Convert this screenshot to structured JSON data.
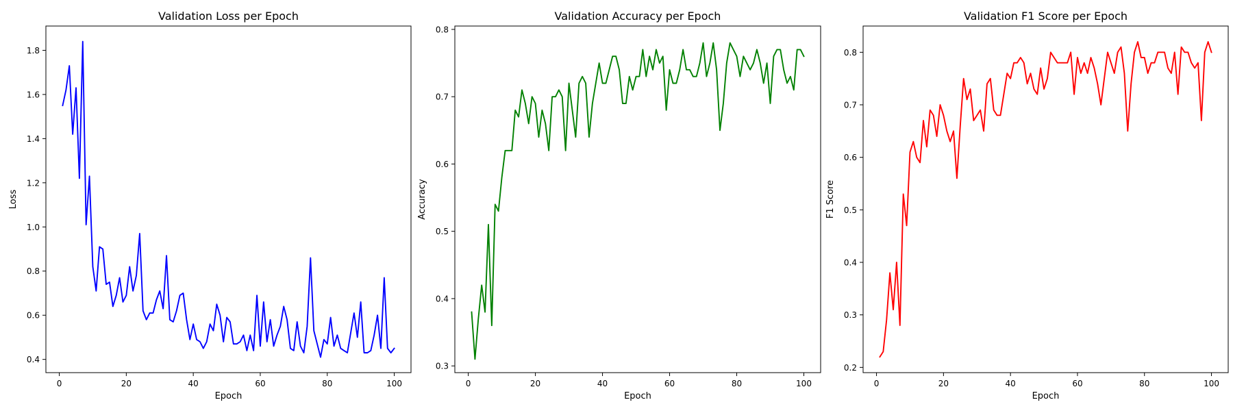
{
  "chart_data": [
    {
      "type": "line",
      "title": "Validation Loss per Epoch",
      "xlabel": "Epoch",
      "ylabel": "Loss",
      "xlim": [
        -4,
        105
      ],
      "ylim": [
        0.34,
        1.91
      ],
      "xticks": [
        0,
        20,
        40,
        60,
        80,
        100
      ],
      "yticks": [
        0.4,
        0.6,
        0.8,
        1.0,
        1.2,
        1.4,
        1.6,
        1.8
      ],
      "ytick_labels": [
        "0.4",
        "0.6",
        "0.8",
        "1.0",
        "1.2",
        "1.4",
        "1.6",
        "1.8"
      ],
      "grid": false,
      "color": "#0000ff",
      "series": [
        {
          "x": [
            1,
            2,
            3,
            4,
            5,
            6,
            7,
            8,
            9,
            10,
            11,
            12,
            13,
            14,
            15,
            16,
            17,
            18,
            19,
            20,
            21,
            22,
            23,
            24,
            25,
            26,
            27,
            28,
            29,
            30,
            31,
            32,
            33,
            34,
            35,
            36,
            37,
            38,
            39,
            40,
            41,
            42,
            43,
            44,
            45,
            46,
            47,
            48,
            49,
            50,
            51,
            52,
            53,
            54,
            55,
            56,
            57,
            58,
            59,
            60,
            61,
            62,
            63,
            64,
            65,
            66,
            67,
            68,
            69,
            70,
            71,
            72,
            73,
            74,
            75,
            76,
            77,
            78,
            79,
            80,
            81,
            82,
            83,
            84,
            85,
            86,
            87,
            88,
            89,
            90,
            91,
            92,
            93,
            94,
            95,
            96,
            97,
            98,
            99,
            100
          ],
          "values": [
            1.55,
            1.62,
            1.73,
            1.42,
            1.63,
            1.22,
            1.84,
            1.01,
            1.23,
            0.82,
            0.71,
            0.91,
            0.9,
            0.74,
            0.75,
            0.64,
            0.69,
            0.77,
            0.66,
            0.69,
            0.82,
            0.71,
            0.78,
            0.97,
            0.62,
            0.58,
            0.61,
            0.61,
            0.67,
            0.71,
            0.63,
            0.87,
            0.58,
            0.57,
            0.62,
            0.69,
            0.7,
            0.58,
            0.49,
            0.56,
            0.49,
            0.48,
            0.45,
            0.48,
            0.56,
            0.53,
            0.65,
            0.6,
            0.48,
            0.59,
            0.57,
            0.47,
            0.47,
            0.48,
            0.51,
            0.44,
            0.51,
            0.44,
            0.69,
            0.46,
            0.66,
            0.48,
            0.58,
            0.46,
            0.51,
            0.55,
            0.64,
            0.58,
            0.45,
            0.44,
            0.57,
            0.46,
            0.43,
            0.55,
            0.86,
            0.53,
            0.47,
            0.41,
            0.49,
            0.47,
            0.59,
            0.46,
            0.51,
            0.45,
            0.44,
            0.43,
            0.52,
            0.61,
            0.5,
            0.66,
            0.43,
            0.43,
            0.44,
            0.51,
            0.6,
            0.45,
            0.77,
            0.45,
            0.43,
            0.45
          ]
        }
      ]
    },
    {
      "type": "line",
      "title": "Validation Accuracy per Epoch",
      "xlabel": "Epoch",
      "ylabel": "Accuracy",
      "xlim": [
        -4,
        105
      ],
      "ylim": [
        0.29,
        0.805
      ],
      "xticks": [
        0,
        20,
        40,
        60,
        80,
        100
      ],
      "yticks": [
        0.3,
        0.4,
        0.5,
        0.6,
        0.7,
        0.8
      ],
      "ytick_labels": [
        "0.3",
        "0.4",
        "0.5",
        "0.6",
        "0.7",
        "0.8"
      ],
      "grid": false,
      "color": "#008000",
      "series": [
        {
          "x": [
            1,
            2,
            3,
            4,
            5,
            6,
            7,
            8,
            9,
            10,
            11,
            12,
            13,
            14,
            15,
            16,
            17,
            18,
            19,
            20,
            21,
            22,
            23,
            24,
            25,
            26,
            27,
            28,
            29,
            30,
            31,
            32,
            33,
            34,
            35,
            36,
            37,
            38,
            39,
            40,
            41,
            42,
            43,
            44,
            45,
            46,
            47,
            48,
            49,
            50,
            51,
            52,
            53,
            54,
            55,
            56,
            57,
            58,
            59,
            60,
            61,
            62,
            63,
            64,
            65,
            66,
            67,
            68,
            69,
            70,
            71,
            72,
            73,
            74,
            75,
            76,
            77,
            78,
            79,
            80,
            81,
            82,
            83,
            84,
            85,
            86,
            87,
            88,
            89,
            90,
            91,
            92,
            93,
            94,
            95,
            96,
            97,
            98,
            99,
            100
          ],
          "values": [
            0.38,
            0.31,
            0.37,
            0.42,
            0.38,
            0.51,
            0.36,
            0.54,
            0.53,
            0.58,
            0.62,
            0.62,
            0.62,
            0.68,
            0.67,
            0.71,
            0.69,
            0.66,
            0.7,
            0.69,
            0.64,
            0.68,
            0.66,
            0.62,
            0.7,
            0.7,
            0.71,
            0.7,
            0.62,
            0.72,
            0.68,
            0.64,
            0.72,
            0.73,
            0.72,
            0.64,
            0.69,
            0.72,
            0.75,
            0.72,
            0.72,
            0.74,
            0.76,
            0.76,
            0.74,
            0.69,
            0.69,
            0.73,
            0.71,
            0.73,
            0.73,
            0.77,
            0.73,
            0.76,
            0.74,
            0.77,
            0.75,
            0.76,
            0.68,
            0.74,
            0.72,
            0.72,
            0.74,
            0.77,
            0.74,
            0.74,
            0.73,
            0.73,
            0.75,
            0.78,
            0.73,
            0.75,
            0.78,
            0.74,
            0.65,
            0.69,
            0.75,
            0.78,
            0.77,
            0.76,
            0.73,
            0.76,
            0.75,
            0.74,
            0.75,
            0.77,
            0.75,
            0.72,
            0.75,
            0.69,
            0.76,
            0.77,
            0.77,
            0.74,
            0.72,
            0.73,
            0.71,
            0.77,
            0.77,
            0.76
          ]
        }
      ]
    },
    {
      "type": "line",
      "title": "Validation F1 Score per Epoch",
      "xlabel": "Epoch",
      "ylabel": "F1 Score",
      "xlim": [
        -4,
        105
      ],
      "ylim": [
        0.19,
        0.85
      ],
      "xticks": [
        0,
        20,
        40,
        60,
        80,
        100
      ],
      "yticks": [
        0.2,
        0.3,
        0.4,
        0.5,
        0.6,
        0.7,
        0.8
      ],
      "ytick_labels": [
        "0.2",
        "0.3",
        "0.4",
        "0.5",
        "0.6",
        "0.7",
        "0.8"
      ],
      "grid": false,
      "color": "#ff0000",
      "series": [
        {
          "x": [
            1,
            2,
            3,
            4,
            5,
            6,
            7,
            8,
            9,
            10,
            11,
            12,
            13,
            14,
            15,
            16,
            17,
            18,
            19,
            20,
            21,
            22,
            23,
            24,
            25,
            26,
            27,
            28,
            29,
            30,
            31,
            32,
            33,
            34,
            35,
            36,
            37,
            38,
            39,
            40,
            41,
            42,
            43,
            44,
            45,
            46,
            47,
            48,
            49,
            50,
            51,
            52,
            53,
            54,
            55,
            56,
            57,
            58,
            59,
            60,
            61,
            62,
            63,
            64,
            65,
            66,
            67,
            68,
            69,
            70,
            71,
            72,
            73,
            74,
            75,
            76,
            77,
            78,
            79,
            80,
            81,
            82,
            83,
            84,
            85,
            86,
            87,
            88,
            89,
            90,
            91,
            92,
            93,
            94,
            95,
            96,
            97,
            98,
            99,
            100
          ],
          "values": [
            0.22,
            0.23,
            0.29,
            0.38,
            0.31,
            0.4,
            0.28,
            0.53,
            0.47,
            0.61,
            0.63,
            0.6,
            0.59,
            0.67,
            0.62,
            0.69,
            0.68,
            0.64,
            0.7,
            0.68,
            0.65,
            0.63,
            0.65,
            0.56,
            0.66,
            0.75,
            0.71,
            0.73,
            0.67,
            0.68,
            0.69,
            0.65,
            0.74,
            0.75,
            0.69,
            0.68,
            0.68,
            0.72,
            0.76,
            0.75,
            0.78,
            0.78,
            0.79,
            0.78,
            0.74,
            0.76,
            0.73,
            0.72,
            0.77,
            0.73,
            0.75,
            0.8,
            0.79,
            0.78,
            0.78,
            0.78,
            0.78,
            0.8,
            0.72,
            0.79,
            0.76,
            0.78,
            0.76,
            0.79,
            0.77,
            0.74,
            0.7,
            0.75,
            0.8,
            0.78,
            0.76,
            0.8,
            0.81,
            0.76,
            0.65,
            0.74,
            0.8,
            0.82,
            0.79,
            0.79,
            0.76,
            0.78,
            0.78,
            0.8,
            0.8,
            0.8,
            0.77,
            0.76,
            0.8,
            0.72,
            0.81,
            0.8,
            0.8,
            0.78,
            0.77,
            0.78,
            0.67,
            0.8,
            0.82,
            0.8
          ]
        }
      ]
    }
  ]
}
